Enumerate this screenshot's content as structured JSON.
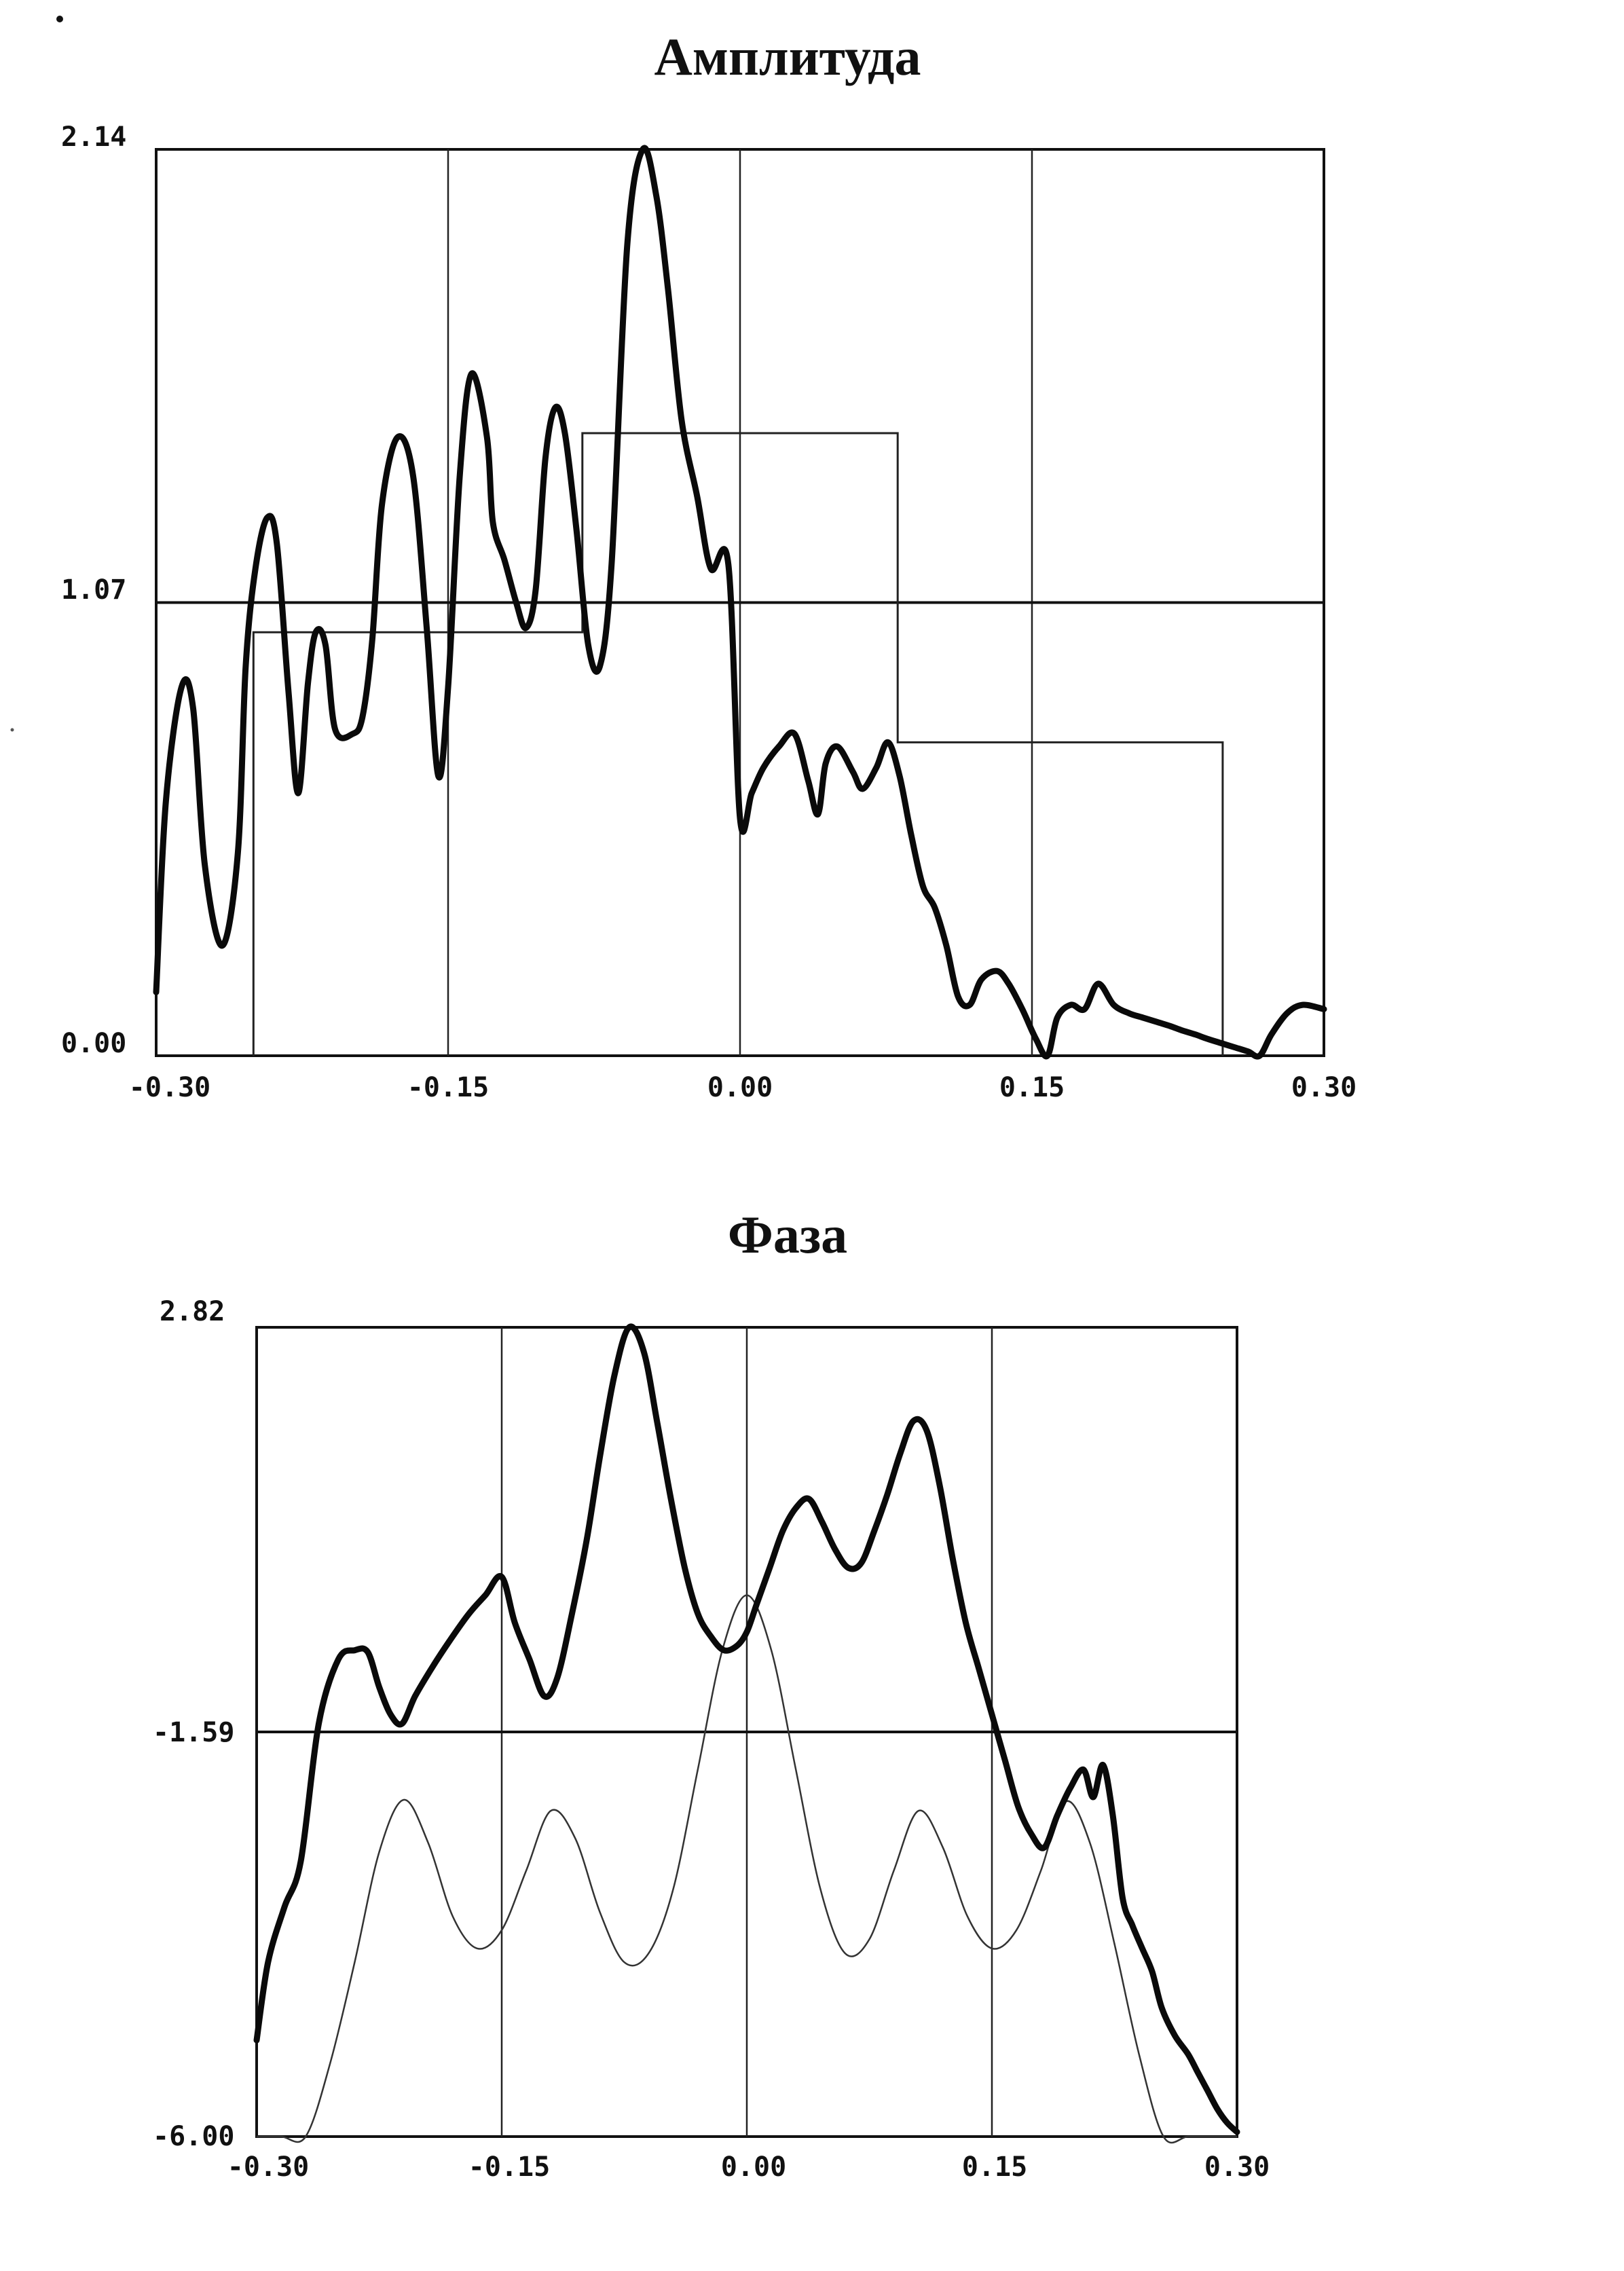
{
  "chart_data": [
    {
      "type": "line",
      "title": "Амплитуда",
      "xlim": [
        -0.3,
        0.3
      ],
      "ylim": [
        0.0,
        2.14
      ],
      "x_ticks": [
        "-0.30",
        "-0.15",
        "0.00",
        "0.15",
        "0.30"
      ],
      "y_ticks": [
        "0.00",
        "1.07",
        "2.14"
      ],
      "grid": "vertical",
      "hline": 1.07,
      "series": [
        {
          "role": "measured",
          "x": [
            -0.3,
            -0.295,
            -0.287,
            -0.281,
            -0.275,
            -0.266,
            -0.258,
            -0.254,
            -0.249,
            -0.243,
            -0.238,
            -0.232,
            -0.227,
            -0.222,
            -0.218,
            -0.213,
            -0.208,
            -0.199,
            -0.194,
            -0.189,
            -0.184,
            -0.176,
            -0.168,
            -0.161,
            -0.155,
            -0.15,
            -0.144,
            -0.138,
            -0.13,
            -0.127,
            -0.121,
            -0.115,
            -0.11,
            -0.105,
            -0.1,
            -0.095,
            -0.09,
            -0.084,
            -0.078,
            -0.072,
            -0.066,
            -0.058,
            -0.05,
            -0.043,
            -0.037,
            -0.03,
            -0.022,
            -0.015,
            -0.006,
            0.0,
            0.006,
            0.012,
            0.02,
            0.028,
            0.035,
            0.04,
            0.044,
            0.05,
            0.058,
            0.063,
            0.07,
            0.076,
            0.082,
            0.088,
            0.094,
            0.1,
            0.106,
            0.112,
            0.118,
            0.124,
            0.132,
            0.138,
            0.145,
            0.152,
            0.158,
            0.163,
            0.17,
            0.177,
            0.184,
            0.192,
            0.2,
            0.207,
            0.214,
            0.221,
            0.227,
            0.234,
            0.24,
            0.247,
            0.254,
            0.261,
            0.267,
            0.273,
            0.281,
            0.289,
            0.3
          ],
          "y": [
            0.15,
            0.6,
            0.87,
            0.82,
            0.45,
            0.26,
            0.48,
            0.92,
            1.15,
            1.27,
            1.21,
            0.86,
            0.62,
            0.88,
            1.0,
            0.97,
            0.77,
            0.76,
            0.8,
            0.98,
            1.3,
            1.46,
            1.37,
            1.01,
            0.66,
            0.87,
            1.37,
            1.61,
            1.46,
            1.26,
            1.17,
            1.07,
            1.01,
            1.1,
            1.41,
            1.53,
            1.47,
            1.24,
            0.97,
            0.92,
            1.16,
            1.91,
            2.14,
            2.03,
            1.81,
            1.5,
            1.32,
            1.15,
            1.16,
            0.56,
            0.62,
            0.68,
            0.73,
            0.76,
            0.65,
            0.57,
            0.69,
            0.73,
            0.67,
            0.63,
            0.68,
            0.74,
            0.66,
            0.52,
            0.4,
            0.35,
            0.26,
            0.14,
            0.12,
            0.18,
            0.2,
            0.17,
            0.11,
            0.04,
            0.0,
            0.09,
            0.12,
            0.11,
            0.17,
            0.12,
            0.1,
            0.09,
            0.08,
            0.07,
            0.06,
            0.05,
            0.04,
            0.03,
            0.02,
            0.01,
            0.0,
            0.05,
            0.1,
            0.12,
            0.11
          ]
        },
        {
          "role": "reference",
          "x": [
            -0.25,
            -0.25,
            -0.081,
            -0.081,
            0.081,
            0.081,
            0.248,
            0.248
          ],
          "y": [
            0.0,
            1.0,
            1.0,
            1.47,
            1.47,
            0.74,
            0.74,
            0.0
          ]
        }
      ]
    },
    {
      "type": "line",
      "title": "Фаза",
      "xlim": [
        -0.3,
        0.3
      ],
      "ylim": [
        -6.0,
        2.82
      ],
      "x_ticks": [
        "-0.30",
        "-0.15",
        "0.00",
        "0.15",
        "0.30"
      ],
      "y_ticks": [
        "-6.00",
        "-1.59",
        "2.82"
      ],
      "grid": "vertical",
      "hline": -1.59,
      "series": [
        {
          "role": "measured",
          "x": [
            -0.3,
            -0.293,
            -0.283,
            -0.273,
            -0.262,
            -0.25,
            -0.24,
            -0.232,
            -0.225,
            -0.218,
            -0.211,
            -0.203,
            -0.193,
            -0.182,
            -0.17,
            -0.16,
            -0.15,
            -0.142,
            -0.133,
            -0.124,
            -0.116,
            -0.107,
            -0.098,
            -0.09,
            -0.081,
            -0.072,
            -0.063,
            -0.055,
            -0.047,
            -0.038,
            -0.03,
            -0.022,
            -0.014,
            -0.006,
            0.0,
            0.006,
            0.014,
            0.022,
            0.03,
            0.038,
            0.046,
            0.054,
            0.062,
            0.07,
            0.078,
            0.086,
            0.094,
            0.102,
            0.11,
            0.118,
            0.126,
            0.134,
            0.142,
            0.15,
            0.158,
            0.166,
            0.174,
            0.182,
            0.19,
            0.198,
            0.206,
            0.212,
            0.218,
            0.224,
            0.23,
            0.236,
            0.242,
            0.248,
            0.254,
            0.262,
            0.27,
            0.276,
            0.282,
            0.288,
            0.294,
            0.3
          ],
          "y": [
            -4.95,
            -4.1,
            -3.5,
            -3.0,
            -1.5,
            -0.8,
            -0.7,
            -0.72,
            -1.1,
            -1.4,
            -1.5,
            -1.2,
            -0.9,
            -0.6,
            -0.3,
            -0.1,
            0.1,
            -0.4,
            -0.8,
            -1.2,
            -1.0,
            -0.3,
            0.5,
            1.4,
            2.3,
            2.82,
            2.55,
            1.8,
            1.0,
            0.2,
            -0.3,
            -0.55,
            -0.7,
            -0.65,
            -0.5,
            -0.2,
            0.2,
            0.6,
            0.85,
            0.95,
            0.7,
            0.4,
            0.2,
            0.25,
            0.6,
            1.0,
            1.45,
            1.8,
            1.7,
            1.1,
            0.3,
            -0.4,
            -0.9,
            -1.4,
            -1.9,
            -2.4,
            -2.7,
            -2.85,
            -2.5,
            -2.2,
            -2.0,
            -2.3,
            -1.95,
            -2.5,
            -3.4,
            -3.7,
            -3.95,
            -4.2,
            -4.6,
            -4.9,
            -5.1,
            -5.3,
            -5.5,
            -5.7,
            -5.85,
            -5.95
          ]
        },
        {
          "role": "reference",
          "x": [
            -0.3,
            -0.285,
            -0.27,
            -0.255,
            -0.24,
            -0.225,
            -0.21,
            -0.195,
            -0.18,
            -0.165,
            -0.15,
            -0.135,
            -0.12,
            -0.105,
            -0.09,
            -0.075,
            -0.06,
            -0.045,
            -0.03,
            -0.015,
            0.0,
            0.015,
            0.03,
            0.045,
            0.06,
            0.075,
            0.09,
            0.105,
            0.12,
            0.135,
            0.15,
            0.165,
            0.18,
            0.195,
            0.21,
            0.225,
            0.24,
            0.255,
            0.27,
            0.285,
            0.3
          ],
          "y": [
            -6.0,
            -6.0,
            -6.0,
            -5.2,
            -4.1,
            -2.9,
            -2.33,
            -2.8,
            -3.6,
            -3.95,
            -3.75,
            -3.1,
            -2.45,
            -2.75,
            -3.55,
            -4.1,
            -4.0,
            -3.3,
            -2.0,
            -0.7,
            -0.1,
            -0.7,
            -2.0,
            -3.3,
            -4.0,
            -3.85,
            -3.1,
            -2.45,
            -2.85,
            -3.6,
            -3.95,
            -3.75,
            -3.1,
            -2.35,
            -2.8,
            -3.9,
            -5.1,
            -6.0,
            -6.0,
            -6.0,
            -6.0
          ]
        }
      ]
    }
  ]
}
